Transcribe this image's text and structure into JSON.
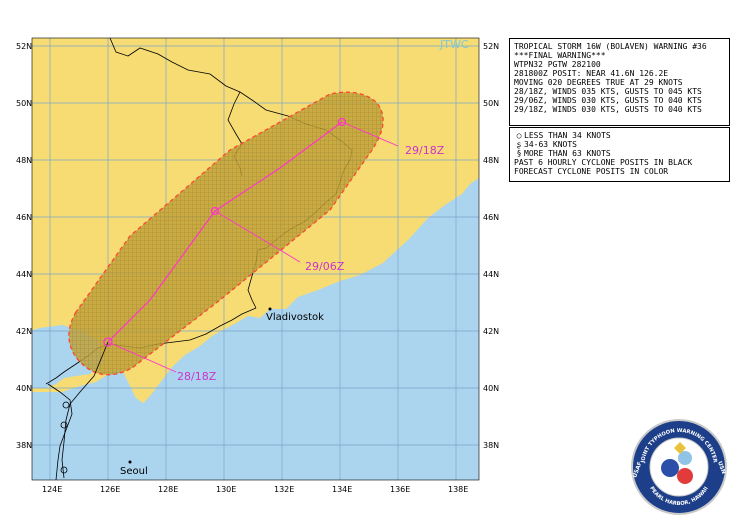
{
  "map": {
    "logo_text": "JTWC",
    "lat_labels": [
      "52N",
      "50N",
      "48N",
      "46N",
      "44N",
      "42N",
      "40N",
      "38N"
    ],
    "lon_labels": [
      "124E",
      "126E",
      "128E",
      "130E",
      "132E",
      "134E",
      "136E",
      "138E"
    ],
    "cities": [
      {
        "name": "Vladivostok"
      },
      {
        "name": "Seoul"
      }
    ],
    "forecast_labels": [
      "29/18Z",
      "29/06Z",
      "28/18Z"
    ],
    "colors": {
      "land": "#f7dc74",
      "water": "#abd4ee",
      "grid": "#7aa6c9",
      "track": "#ff33cc",
      "danger_area": "#b8992e",
      "danger_border": "#ff4433",
      "label": "#cc33cc"
    }
  },
  "warning": {
    "lines": [
      "TROPICAL STORM 16W (BOLAVEN) WARNING #36",
      "***FINAL WARNING***",
      "WTPN32 PGTW 282100",
      "281800Z POSIT: NEAR 41.6N 126.2E",
      "MOVING 020 DEGREES TRUE AT 29 KNOTS",
      "28/18Z, WINDS 035 KTS, GUSTS TO 045 KTS",
      "29/06Z, WINDS 030 KTS, GUSTS TO 040 KTS",
      "29/18Z, WINDS 030 KTS, GUSTS TO 040 KTS"
    ]
  },
  "legend": {
    "items": [
      {
        "symbol": "○",
        "text": "LESS THAN 34 KNOTS"
      },
      {
        "symbol": "ʂ",
        "text": "34-63 KNOTS"
      },
      {
        "symbol": "§",
        "text": "MORE THAN 63 KNOTS"
      }
    ],
    "notes": [
      "PAST 6 HOURLY CYCLONE POSITS IN BLACK",
      "FORECAST CYCLONE POSITS IN COLOR"
    ]
  },
  "seal": {
    "text_top": "JOINT TYPHOON WARNING CENTER",
    "text_bottom": "PEARL HARBOR, HAWAII",
    "text_left": "USAF",
    "text_right": "USN"
  }
}
